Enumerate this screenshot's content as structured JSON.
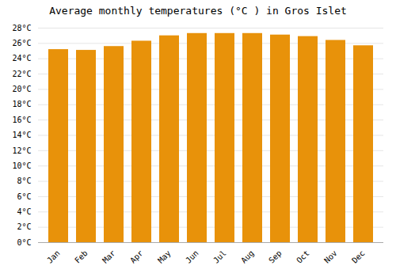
{
  "chart_data": {
    "type": "bar",
    "title": "Average monthly temperatures (°C ) in Gros Islet",
    "categories": [
      "Jan",
      "Feb",
      "Mar",
      "Apr",
      "May",
      "Jun",
      "Jul",
      "Aug",
      "Sep",
      "Oct",
      "Nov",
      "Dec"
    ],
    "values": [
      25.2,
      25.1,
      25.6,
      26.3,
      27.0,
      27.3,
      27.3,
      27.3,
      27.1,
      26.9,
      26.4,
      25.7
    ],
    "color": "#E8920A",
    "ylim": [
      0,
      28
    ],
    "yticks": [
      {
        "value": 0,
        "label": "0°C"
      },
      {
        "value": 2,
        "label": "2°C"
      },
      {
        "value": 4,
        "label": "4°C"
      },
      {
        "value": 6,
        "label": "6°C"
      },
      {
        "value": 8,
        "label": "8°C"
      },
      {
        "value": 10,
        "label": "10°C"
      },
      {
        "value": 12,
        "label": "12°C"
      },
      {
        "value": 14,
        "label": "14°C"
      },
      {
        "value": 16,
        "label": "16°C"
      },
      {
        "value": 18,
        "label": "18°C"
      },
      {
        "value": 20,
        "label": "20°C"
      },
      {
        "value": 22,
        "label": "22°C"
      },
      {
        "value": 24,
        "label": "24°C"
      },
      {
        "value": 26,
        "label": "26°C"
      },
      {
        "value": 28,
        "label": "28°C"
      }
    ],
    "grid": true
  }
}
